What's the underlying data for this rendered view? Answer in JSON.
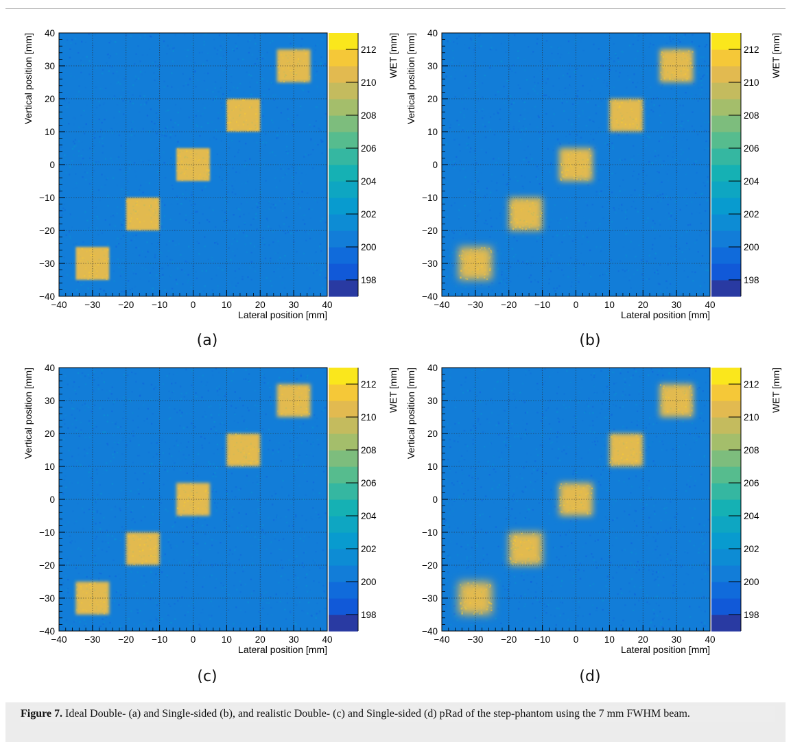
{
  "figure": {
    "caption_label": "Figure 7.",
    "caption_text": " Ideal Double- (a) and Single-sided (b), and realistic Double- (c) and Single-sided (d) pRad of the step-phantom using the 7 mm FWHM beam."
  },
  "colors": {
    "background_wet": "#2b85d8",
    "square_wet": "#e8c233",
    "grid": "#333333"
  },
  "chart_data": [
    {
      "type": "heatmap",
      "panel_label": "(a)",
      "xlabel": "Lateral position [mm]",
      "ylabel": "Vertical position [mm]",
      "zlabel": "WET [mm]",
      "xlim": [
        -40,
        40
      ],
      "ylim": [
        -40,
        40
      ],
      "zlim": [
        197,
        213
      ],
      "xticks": [
        -40,
        -30,
        -20,
        -10,
        0,
        10,
        20,
        30,
        40
      ],
      "yticks": [
        -40,
        -30,
        -20,
        -10,
        0,
        10,
        20,
        30,
        40
      ],
      "zticks": [
        198,
        200,
        202,
        204,
        206,
        208,
        210,
        212
      ],
      "grid": true,
      "background_wet": 200.5,
      "squares": [
        {
          "x": -30,
          "y": -30,
          "size": 10,
          "wet": 210.5,
          "blur": 0.3
        },
        {
          "x": -15,
          "y": -15,
          "size": 10,
          "wet": 210.5,
          "blur": 0.3
        },
        {
          "x": 0,
          "y": 0,
          "size": 10,
          "wet": 210.5,
          "blur": 0.3
        },
        {
          "x": 15,
          "y": 15,
          "size": 10,
          "wet": 210.5,
          "blur": 0.3
        },
        {
          "x": 30,
          "y": 30,
          "size": 10,
          "wet": 210.5,
          "blur": 0.5
        }
      ]
    },
    {
      "type": "heatmap",
      "panel_label": "(b)",
      "xlabel": "Lateral position [mm]",
      "ylabel": "Vertical position [mm]",
      "zlabel": "WET [mm]",
      "xlim": [
        -40,
        40
      ],
      "ylim": [
        -40,
        40
      ],
      "zlim": [
        197,
        213
      ],
      "xticks": [
        -40,
        -30,
        -20,
        -10,
        0,
        10,
        20,
        30,
        40
      ],
      "yticks": [
        -40,
        -30,
        -20,
        -10,
        0,
        10,
        20,
        30,
        40
      ],
      "zticks": [
        198,
        200,
        202,
        204,
        206,
        208,
        210,
        212
      ],
      "grid": true,
      "background_wet": 200.5,
      "squares": [
        {
          "x": -30,
          "y": -30,
          "size": 10,
          "wet": 210.5,
          "blur": 1.2
        },
        {
          "x": -15,
          "y": -15,
          "size": 10,
          "wet": 210.5,
          "blur": 1.0
        },
        {
          "x": 0,
          "y": 0,
          "size": 10,
          "wet": 210.5,
          "blur": 0.9
        },
        {
          "x": 15,
          "y": 15,
          "size": 10,
          "wet": 210.5,
          "blur": 0.6
        },
        {
          "x": 30,
          "y": 30,
          "size": 10,
          "wet": 210.5,
          "blur": 0.8
        }
      ]
    },
    {
      "type": "heatmap",
      "panel_label": "(c)",
      "xlabel": "Lateral position [mm]",
      "ylabel": "Vertical position [mm]",
      "zlabel": "WET [mm]",
      "xlim": [
        -40,
        40
      ],
      "ylim": [
        -40,
        40
      ],
      "zlim": [
        197,
        213
      ],
      "xticks": [
        -40,
        -30,
        -20,
        -10,
        0,
        10,
        20,
        30,
        40
      ],
      "yticks": [
        -40,
        -30,
        -20,
        -10,
        0,
        10,
        20,
        30,
        40
      ],
      "zticks": [
        198,
        200,
        202,
        204,
        206,
        208,
        210,
        212
      ],
      "grid": true,
      "background_wet": 200.5,
      "squares": [
        {
          "x": -30,
          "y": -30,
          "size": 10,
          "wet": 210.5,
          "blur": 0.5
        },
        {
          "x": -15,
          "y": -15,
          "size": 10,
          "wet": 210.5,
          "blur": 0.5
        },
        {
          "x": 0,
          "y": 0,
          "size": 10,
          "wet": 210.5,
          "blur": 0.5
        },
        {
          "x": 15,
          "y": 15,
          "size": 10,
          "wet": 210.5,
          "blur": 0.5
        },
        {
          "x": 30,
          "y": 30,
          "size": 10,
          "wet": 210.5,
          "blur": 0.6
        }
      ]
    },
    {
      "type": "heatmap",
      "panel_label": "(d)",
      "xlabel": "Lateral position [mm]",
      "ylabel": "Vertical position [mm]",
      "zlabel": "WET [mm]",
      "xlim": [
        -40,
        40
      ],
      "ylim": [
        -40,
        40
      ],
      "zlim": [
        197,
        213
      ],
      "xticks": [
        -40,
        -30,
        -20,
        -10,
        0,
        10,
        20,
        30,
        40
      ],
      "yticks": [
        -40,
        -30,
        -20,
        -10,
        0,
        10,
        20,
        30,
        40
      ],
      "zticks": [
        198,
        200,
        202,
        204,
        206,
        208,
        210,
        212
      ],
      "grid": true,
      "background_wet": 200.5,
      "squares": [
        {
          "x": -30,
          "y": -30,
          "size": 10,
          "wet": 210.5,
          "blur": 1.3
        },
        {
          "x": -15,
          "y": -15,
          "size": 10,
          "wet": 210.5,
          "blur": 1.1
        },
        {
          "x": 0,
          "y": 0,
          "size": 10,
          "wet": 210.5,
          "blur": 1.0
        },
        {
          "x": 15,
          "y": 15,
          "size": 10,
          "wet": 210.5,
          "blur": 0.7
        },
        {
          "x": 30,
          "y": 30,
          "size": 10,
          "wet": 210.5,
          "blur": 0.9
        }
      ]
    }
  ]
}
